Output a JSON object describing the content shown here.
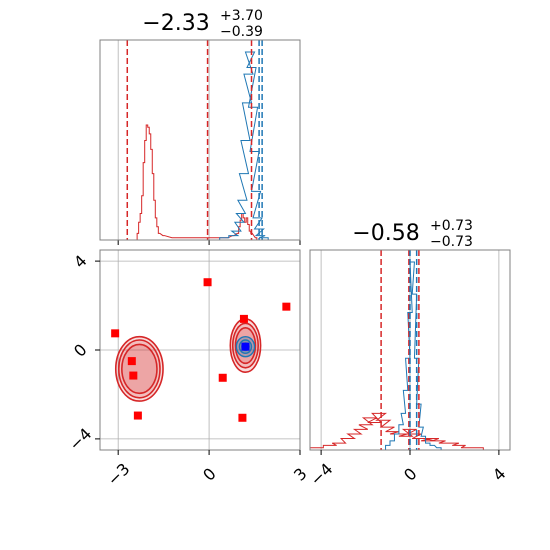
{
  "chart_data": {
    "type": "corner",
    "colors": {
      "series_red": "#d62728",
      "series_blue": "#1f77b4",
      "marker_red": "#ff0000",
      "marker_blue": "#0000ff",
      "grid": "#b0b0b0",
      "frame": "#808080"
    },
    "grid": true,
    "title_x": {
      "value": "−2.33",
      "sup": "+3.70",
      "sub": "−0.39"
    },
    "title_y": {
      "value": "−0.58",
      "sup": "+0.73",
      "sub": "−0.73"
    },
    "x_ticks": [
      {
        "value": -3,
        "label": "−3"
      },
      {
        "value": 0,
        "label": "0"
      },
      {
        "value": 3,
        "label": "3"
      }
    ],
    "y_ticks": [
      {
        "value": 4,
        "label": "4"
      },
      {
        "value": 0,
        "label": "0"
      },
      {
        "value": -4,
        "label": "−4"
      }
    ],
    "y_hist_ticks": [
      {
        "value": -4,
        "label": "−4"
      },
      {
        "value": 0,
        "label": "0"
      },
      {
        "value": 4,
        "label": "4"
      }
    ],
    "xlim": [
      -3.6,
      3.0
    ],
    "ylim": [
      -4.5,
      4.5
    ],
    "x_hist_red": [
      [
        -2.35,
        0.03
      ],
      [
        -2.3,
        0.08
      ],
      [
        -2.25,
        0.12
      ],
      [
        -2.2,
        0.2
      ],
      [
        -2.15,
        0.35
      ],
      [
        -2.1,
        0.45
      ],
      [
        -2.05,
        0.52
      ],
      [
        -2.0,
        0.51
      ],
      [
        -1.95,
        0.48
      ],
      [
        -1.9,
        0.41
      ],
      [
        -1.85,
        0.3
      ],
      [
        -1.8,
        0.18
      ],
      [
        -1.75,
        0.1
      ],
      [
        -1.7,
        0.06
      ],
      [
        -1.65,
        0.03
      ],
      [
        -1.5,
        0.02
      ],
      [
        -1.2,
        0.01
      ],
      [
        0.6,
        0.01
      ],
      [
        0.8,
        0.02
      ],
      [
        0.95,
        0.03
      ],
      [
        1.0,
        0.06
      ],
      [
        1.05,
        0.09
      ],
      [
        1.1,
        0.12
      ],
      [
        1.15,
        0.1
      ],
      [
        1.2,
        0.08
      ],
      [
        1.25,
        0.1
      ],
      [
        1.3,
        0.07
      ],
      [
        1.35,
        0.04
      ],
      [
        1.4,
        0.03
      ],
      [
        1.55,
        0.01
      ]
    ],
    "x_hist_blue": [
      [
        0.5,
        0.01
      ],
      [
        0.8,
        0.02
      ],
      [
        0.9,
        0.04
      ],
      [
        1.0,
        0.08
      ],
      [
        1.05,
        0.12
      ],
      [
        1.1,
        0.18
      ],
      [
        1.15,
        0.3
      ],
      [
        1.2,
        0.45
      ],
      [
        1.25,
        0.62
      ],
      [
        1.3,
        0.75
      ],
      [
        1.35,
        0.85
      ],
      [
        1.4,
        0.78
      ],
      [
        1.45,
        0.6
      ],
      [
        1.5,
        0.4
      ],
      [
        1.55,
        0.22
      ],
      [
        1.6,
        0.1
      ],
      [
        1.65,
        0.05
      ],
      [
        1.7,
        0.02
      ],
      [
        1.8,
        0.01
      ]
    ],
    "y_hist_red": [
      [
        -4.2,
        0.01
      ],
      [
        -3.6,
        0.02
      ],
      [
        -3.2,
        0.03
      ],
      [
        -2.8,
        0.05
      ],
      [
        -2.5,
        0.07
      ],
      [
        -2.2,
        0.09
      ],
      [
        -2.0,
        0.11
      ],
      [
        -1.8,
        0.14
      ],
      [
        -1.6,
        0.12
      ],
      [
        -1.4,
        0.16
      ],
      [
        -1.2,
        0.13
      ],
      [
        -1.0,
        0.1
      ],
      [
        -0.8,
        0.08
      ],
      [
        -0.6,
        0.07
      ],
      [
        -0.4,
        0.07
      ],
      [
        -0.2,
        0.06
      ],
      [
        0.0,
        0.09
      ],
      [
        0.2,
        0.07
      ],
      [
        0.4,
        0.05
      ],
      [
        0.6,
        0.05
      ],
      [
        0.8,
        0.04
      ],
      [
        1.0,
        0.05
      ],
      [
        1.3,
        0.04
      ],
      [
        1.6,
        0.03
      ],
      [
        1.9,
        0.03
      ],
      [
        2.2,
        0.02
      ],
      [
        2.6,
        0.01
      ],
      [
        3.0,
        0.01
      ]
    ],
    "y_hist_blue": [
      [
        -1.0,
        0.02
      ],
      [
        -0.8,
        0.04
      ],
      [
        -0.6,
        0.07
      ],
      [
        -0.4,
        0.11
      ],
      [
        -0.3,
        0.16
      ],
      [
        -0.2,
        0.26
      ],
      [
        -0.1,
        0.4
      ],
      [
        0.0,
        0.6
      ],
      [
        0.1,
        0.82
      ],
      [
        0.2,
        0.68
      ],
      [
        0.3,
        0.4
      ],
      [
        0.4,
        0.2
      ],
      [
        0.5,
        0.1
      ],
      [
        0.6,
        0.06
      ],
      [
        0.8,
        0.03
      ],
      [
        1.0,
        0.02
      ],
      [
        1.3,
        0.01
      ]
    ],
    "x_quantiles_red": [
      -2.7,
      -0.05,
      1.4
    ],
    "x_quantiles_blue": [
      1.65,
      1.75
    ],
    "y_quantiles_red": [
      -1.3,
      -0.05,
      0.4
    ],
    "y_quantiles_blue": [
      0.0,
      0.3
    ],
    "contours_red": [
      {
        "cx": -2.3,
        "cy": -0.85,
        "rx": 0.78,
        "ry": 1.45
      },
      {
        "cx": -2.3,
        "cy": -0.85,
        "rx": 0.68,
        "ry": 1.3
      },
      {
        "cx": -2.3,
        "cy": -0.85,
        "rx": 0.58,
        "ry": 1.1
      },
      {
        "cx": 1.2,
        "cy": 0.2,
        "rx": 0.5,
        "ry": 1.2
      },
      {
        "cx": 1.2,
        "cy": 0.2,
        "rx": 0.42,
        "ry": 1.0
      },
      {
        "cx": 1.2,
        "cy": 0.2,
        "rx": 0.33,
        "ry": 0.8
      }
    ],
    "contours_blue": [
      {
        "cx": 1.2,
        "cy": 0.15,
        "rx": 0.3,
        "ry": 0.45
      },
      {
        "cx": 1.2,
        "cy": 0.15,
        "rx": 0.2,
        "ry": 0.3
      },
      {
        "cx": 1.2,
        "cy": 0.15,
        "rx": 0.12,
        "ry": 0.17
      }
    ],
    "markers_red": [
      [
        -0.05,
        3.05
      ],
      [
        -3.1,
        0.75
      ],
      [
        -2.55,
        -0.5
      ],
      [
        -2.5,
        -1.15
      ],
      [
        -2.35,
        -2.95
      ],
      [
        0.45,
        -1.25
      ],
      [
        1.15,
        1.4
      ],
      [
        1.1,
        -3.05
      ],
      [
        2.55,
        1.95
      ]
    ],
    "marker_blue": [
      1.2,
      0.15
    ]
  }
}
